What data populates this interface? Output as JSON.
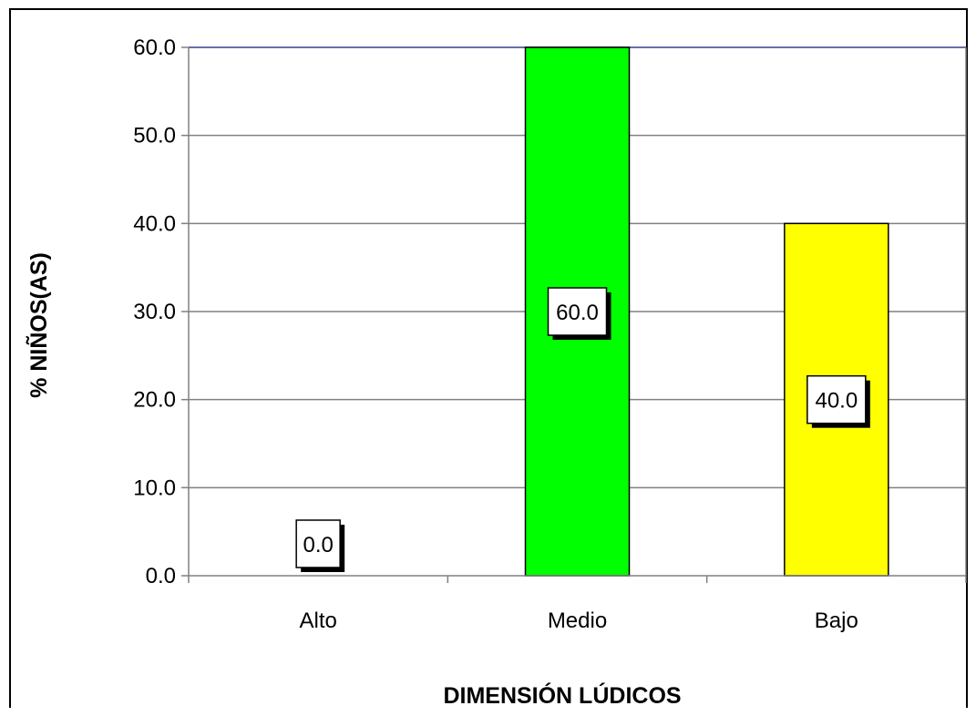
{
  "chart_data": {
    "type": "bar",
    "categories": [
      "Alto",
      "Medio",
      "Bajo"
    ],
    "values": [
      0.0,
      60.0,
      40.0
    ],
    "data_labels": [
      "0.0",
      "60.0",
      "40.0"
    ],
    "bar_colors": [
      "#ffffff",
      "#00ff00",
      "#ffff00"
    ],
    "title": "",
    "xlabel": "DIMENSIÓN LÚDICOS",
    "ylabel": "% NIÑOS(AS)",
    "ylim": [
      0,
      60
    ],
    "yticks": [
      0,
      10,
      20,
      30,
      40,
      50,
      60
    ],
    "ytick_labels": [
      "0.0",
      "10.0",
      "20.0",
      "30.0",
      "40.0",
      "50.0",
      "60.0"
    ],
    "grid": true,
    "legend": "none"
  }
}
